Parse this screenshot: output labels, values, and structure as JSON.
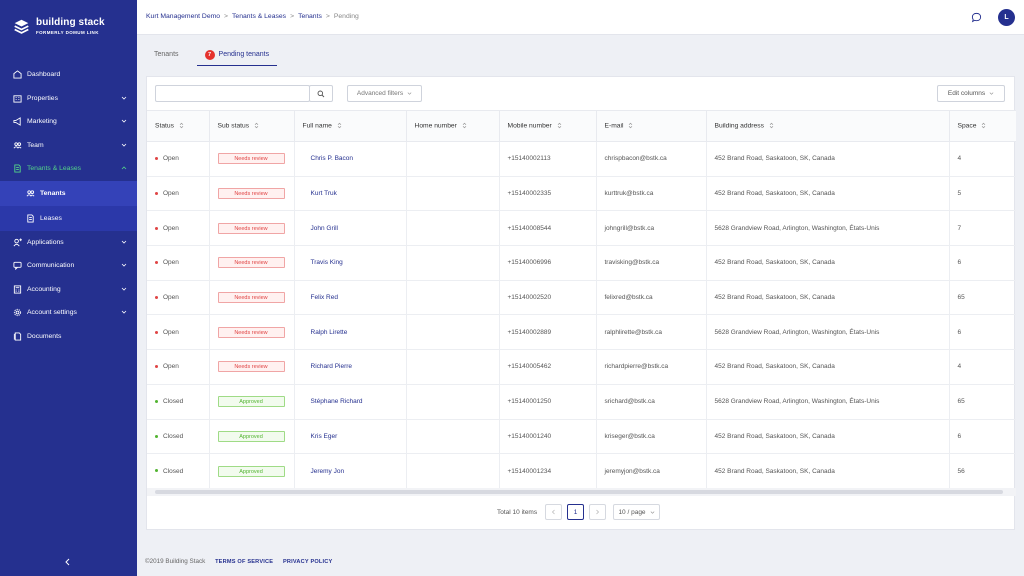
{
  "brand": {
    "name": "building stack",
    "sub": "FORMERLY DOMUM LINK"
  },
  "colors": {
    "sidebar": "#25308f",
    "accent": "#25308f",
    "active_green": "#54d488",
    "error": "#e04545",
    "success": "#52b431"
  },
  "sidebar": {
    "items": [
      {
        "label": "Dashboard",
        "icon": "dashboard-icon"
      },
      {
        "label": "Properties",
        "icon": "building-icon",
        "expandable": true
      },
      {
        "label": "Marketing",
        "icon": "megaphone-icon",
        "expandable": true
      },
      {
        "label": "Team",
        "icon": "team-icon",
        "expandable": true
      },
      {
        "label": "Tenants & Leases",
        "icon": "document-icon",
        "expandable": true,
        "expanded": true
      },
      {
        "label": "Applications",
        "icon": "user-add-icon",
        "expandable": true
      },
      {
        "label": "Communication",
        "icon": "message-icon",
        "expandable": true
      },
      {
        "label": "Accounting",
        "icon": "calculator-icon",
        "expandable": true
      },
      {
        "label": "Account settings",
        "icon": "gear-icon",
        "expandable": true
      },
      {
        "label": "Documents",
        "icon": "documents-icon"
      }
    ],
    "sub_items": [
      {
        "label": "Tenants",
        "icon": "users-icon",
        "current": true
      },
      {
        "label": "Leases",
        "icon": "file-icon"
      }
    ]
  },
  "breadcrumb": {
    "items": [
      "Kurt Management Demo",
      "Tenants & Leases",
      "Tenants"
    ],
    "current": "Pending"
  },
  "user": {
    "initial": "L"
  },
  "tabs": [
    {
      "label": "Tenants"
    },
    {
      "label": "Pending tenants",
      "badge": "7",
      "active": true
    }
  ],
  "toolbar": {
    "search_placeholder": "",
    "advanced_filters": "Advanced filters",
    "edit_columns": "Edit columns"
  },
  "table": {
    "columns": [
      "Status",
      "Sub status",
      "Full name",
      "Home number",
      "Mobile number",
      "E-mail",
      "Building address",
      "Space"
    ],
    "rows": [
      {
        "status": "Open",
        "sub": "Needs review",
        "name": "Chris P. Bacon",
        "home": "",
        "mobile": "+15140002113",
        "email": "chrispbacon@bstk.ca",
        "address": "452 Brand Road, Saskatoon, SK, Canada",
        "space": "4"
      },
      {
        "status": "Open",
        "sub": "Needs review",
        "name": "Kurt Truk",
        "home": "",
        "mobile": "+15140002335",
        "email": "kurttruk@bstk.ca",
        "address": "452 Brand Road, Saskatoon, SK, Canada",
        "space": "5"
      },
      {
        "status": "Open",
        "sub": "Needs review",
        "name": "John Grill",
        "home": "",
        "mobile": "+15140008544",
        "email": "johngrill@bstk.ca",
        "address": "5628 Grandview Road, Arlington, Washington, États-Unis",
        "space": "7"
      },
      {
        "status": "Open",
        "sub": "Needs review",
        "name": "Travis King",
        "home": "",
        "mobile": "+15140006996",
        "email": "travisking@bstk.ca",
        "address": "452 Brand Road, Saskatoon, SK, Canada",
        "space": "6"
      },
      {
        "status": "Open",
        "sub": "Needs review",
        "name": "Felix Red",
        "home": "",
        "mobile": "+15140002520",
        "email": "felixred@bstk.ca",
        "address": "452 Brand Road, Saskatoon, SK, Canada",
        "space": "65"
      },
      {
        "status": "Open",
        "sub": "Needs review",
        "name": "Ralph Lirette",
        "home": "",
        "mobile": "+15140002889",
        "email": "ralphlirette@bstk.ca",
        "address": "5628 Grandview Road, Arlington, Washington, États-Unis",
        "space": "6"
      },
      {
        "status": "Open",
        "sub": "Needs review",
        "name": "Richard Pierre",
        "home": "",
        "mobile": "+15140005462",
        "email": "richardpierre@bstk.ca",
        "address": "452 Brand Road, Saskatoon, SK, Canada",
        "space": "4"
      },
      {
        "status": "Closed",
        "sub": "Approved",
        "name": "Stéphane Richard",
        "home": "",
        "mobile": "+15140001250",
        "email": "srichard@bstk.ca",
        "address": "5628 Grandview Road, Arlington, Washington, États-Unis",
        "space": "65"
      },
      {
        "status": "Closed",
        "sub": "Approved",
        "name": "Kris Eger",
        "home": "",
        "mobile": "+15140001240",
        "email": "kriseger@bstk.ca",
        "address": "452 Brand Road, Saskatoon, SK, Canada",
        "space": "6"
      },
      {
        "status": "Closed",
        "sub": "Approved",
        "name": "Jeremy Jon",
        "home": "",
        "mobile": "+15140001234",
        "email": "jeremyjon@bstk.ca",
        "address": "452 Brand Road, Saskatoon, SK, Canada",
        "space": "56"
      }
    ]
  },
  "pagination": {
    "total": "Total 10 items",
    "current_page": "1",
    "page_size": "10 / page"
  },
  "footer": {
    "copyright": "©2019 Building Stack",
    "terms": "TERMS OF SERVICE",
    "privacy": "PRIVACY POLICY"
  }
}
